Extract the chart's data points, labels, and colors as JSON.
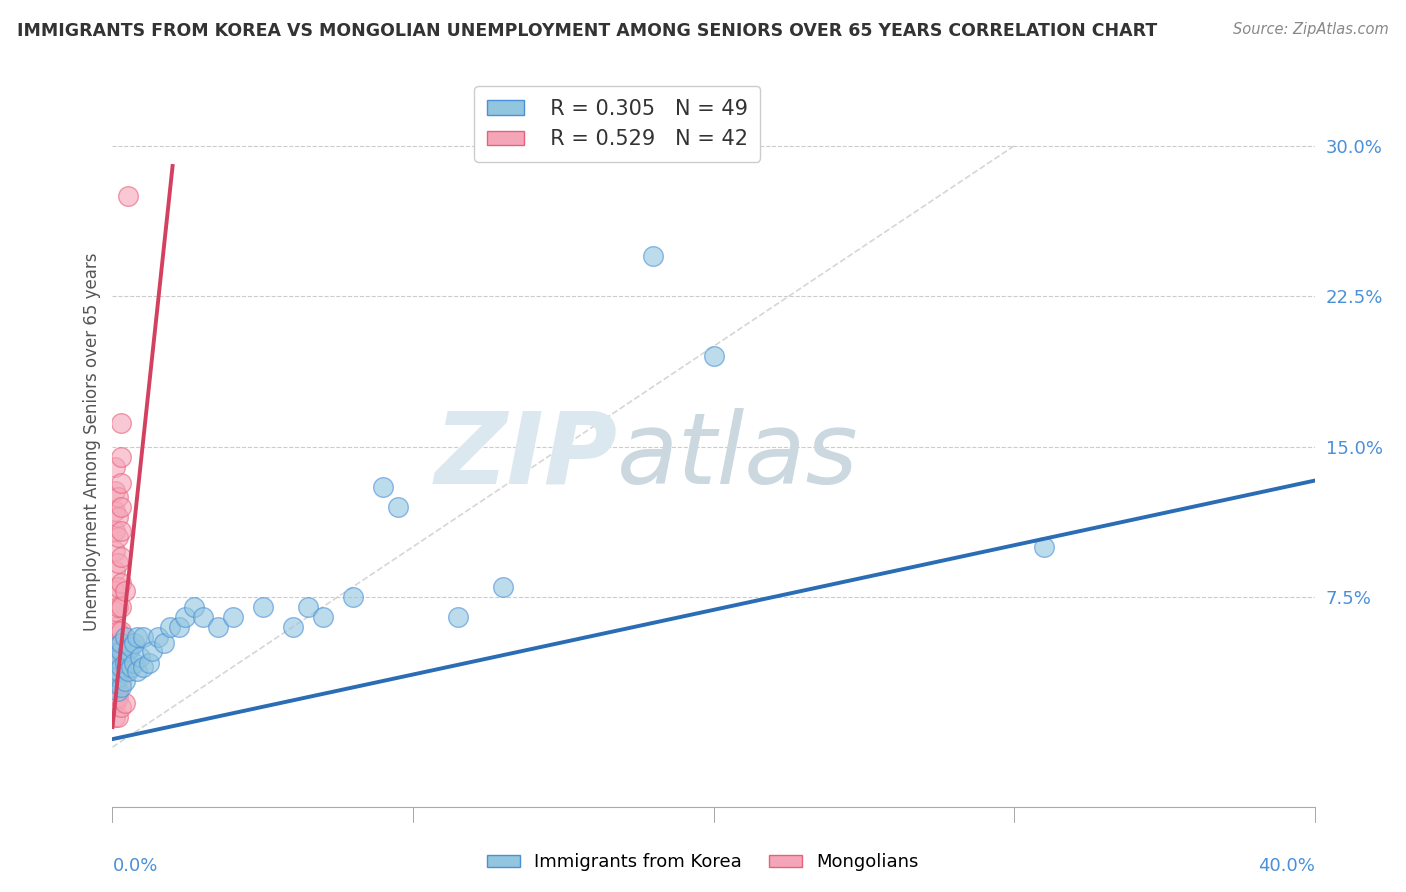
{
  "title": "IMMIGRANTS FROM KOREA VS MONGOLIAN UNEMPLOYMENT AMONG SENIORS OVER 65 YEARS CORRELATION CHART",
  "source": "Source: ZipAtlas.com",
  "ylabel": "Unemployment Among Seniors over 65 years",
  "xlim": [
    0,
    0.4
  ],
  "ylim": [
    -0.03,
    0.335
  ],
  "yticks": [
    0.0,
    0.075,
    0.15,
    0.225,
    0.3
  ],
  "ytick_labels": [
    "",
    "7.5%",
    "15.0%",
    "22.5%",
    "30.0%"
  ],
  "legend_korea_R": "0.305",
  "legend_korea_N": "49",
  "legend_mongol_R": "0.529",
  "legend_mongol_N": "42",
  "korea_color": "#92c5de",
  "mongol_color": "#f4a6b8",
  "korea_edge_color": "#4a90d9",
  "mongol_edge_color": "#e8607a",
  "korea_line_color": "#2b6db5",
  "mongol_line_color": "#d44060",
  "korea_line": [
    0.0,
    0.004,
    0.4,
    0.133
  ],
  "mongol_line": [
    0.0,
    0.01,
    0.02,
    0.29
  ],
  "ref_line": [
    [
      0.0,
      0.0
    ],
    [
      0.3,
      0.3
    ]
  ],
  "korea_scatter": [
    [
      0.001,
      0.032
    ],
    [
      0.001,
      0.038
    ],
    [
      0.001,
      0.042
    ],
    [
      0.001,
      0.05
    ],
    [
      0.002,
      0.028
    ],
    [
      0.002,
      0.035
    ],
    [
      0.002,
      0.038
    ],
    [
      0.002,
      0.044
    ],
    [
      0.003,
      0.03
    ],
    [
      0.003,
      0.04
    ],
    [
      0.003,
      0.048
    ],
    [
      0.003,
      0.052
    ],
    [
      0.004,
      0.033
    ],
    [
      0.004,
      0.042
    ],
    [
      0.004,
      0.055
    ],
    [
      0.005,
      0.038
    ],
    [
      0.005,
      0.048
    ],
    [
      0.006,
      0.04
    ],
    [
      0.006,
      0.05
    ],
    [
      0.007,
      0.042
    ],
    [
      0.007,
      0.052
    ],
    [
      0.008,
      0.038
    ],
    [
      0.008,
      0.055
    ],
    [
      0.009,
      0.045
    ],
    [
      0.01,
      0.04
    ],
    [
      0.01,
      0.055
    ],
    [
      0.012,
      0.042
    ],
    [
      0.013,
      0.048
    ],
    [
      0.015,
      0.055
    ],
    [
      0.017,
      0.052
    ],
    [
      0.019,
      0.06
    ],
    [
      0.022,
      0.06
    ],
    [
      0.024,
      0.065
    ],
    [
      0.027,
      0.07
    ],
    [
      0.03,
      0.065
    ],
    [
      0.035,
      0.06
    ],
    [
      0.04,
      0.065
    ],
    [
      0.05,
      0.07
    ],
    [
      0.06,
      0.06
    ],
    [
      0.065,
      0.07
    ],
    [
      0.07,
      0.065
    ],
    [
      0.08,
      0.075
    ],
    [
      0.09,
      0.13
    ],
    [
      0.095,
      0.12
    ],
    [
      0.115,
      0.065
    ],
    [
      0.13,
      0.08
    ],
    [
      0.18,
      0.245
    ],
    [
      0.2,
      0.195
    ],
    [
      0.31,
      0.1
    ]
  ],
  "mongol_scatter": [
    [
      0.001,
      0.015
    ],
    [
      0.001,
      0.022
    ],
    [
      0.001,
      0.03
    ],
    [
      0.001,
      0.038
    ],
    [
      0.001,
      0.045
    ],
    [
      0.001,
      0.052
    ],
    [
      0.001,
      0.06
    ],
    [
      0.001,
      0.068
    ],
    [
      0.001,
      0.078
    ],
    [
      0.001,
      0.088
    ],
    [
      0.001,
      0.098
    ],
    [
      0.001,
      0.108
    ],
    [
      0.001,
      0.118
    ],
    [
      0.001,
      0.128
    ],
    [
      0.001,
      0.14
    ],
    [
      0.002,
      0.015
    ],
    [
      0.002,
      0.025
    ],
    [
      0.002,
      0.035
    ],
    [
      0.002,
      0.048
    ],
    [
      0.002,
      0.058
    ],
    [
      0.002,
      0.07
    ],
    [
      0.002,
      0.08
    ],
    [
      0.002,
      0.092
    ],
    [
      0.002,
      0.105
    ],
    [
      0.002,
      0.115
    ],
    [
      0.002,
      0.125
    ],
    [
      0.003,
      0.02
    ],
    [
      0.003,
      0.032
    ],
    [
      0.003,
      0.045
    ],
    [
      0.003,
      0.058
    ],
    [
      0.003,
      0.07
    ],
    [
      0.003,
      0.082
    ],
    [
      0.003,
      0.095
    ],
    [
      0.003,
      0.108
    ],
    [
      0.003,
      0.12
    ],
    [
      0.003,
      0.132
    ],
    [
      0.003,
      0.145
    ],
    [
      0.003,
      0.162
    ],
    [
      0.004,
      0.022
    ],
    [
      0.004,
      0.04
    ],
    [
      0.004,
      0.078
    ],
    [
      0.005,
      0.275
    ]
  ]
}
